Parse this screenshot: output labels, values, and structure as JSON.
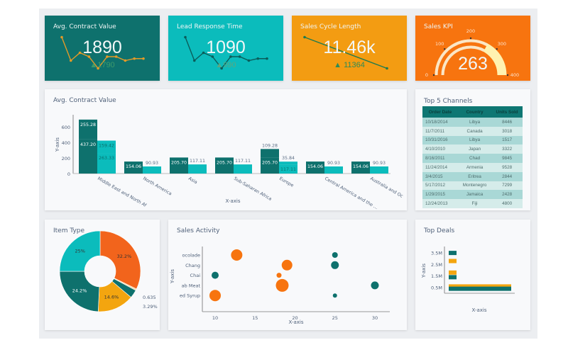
{
  "colors": {
    "dark_teal": "#0e716d",
    "cyan": "#0bbcbc",
    "amber": "#f39c12",
    "orange": "#f7740f",
    "green": "#2e8b57"
  },
  "kpis": [
    {
      "title": "Avg. Contract Value",
      "value": "1890",
      "sub": "1790",
      "bg": "#0e716d",
      "line": "#e39a27",
      "spark": [
        9,
        3,
        5,
        4,
        1,
        4,
        4,
        3,
        3.5,
        3.5
      ]
    },
    {
      "title": "Lead Response Time",
      "value": "1090",
      "sub": "990",
      "bg": "#0bbcbc",
      "line": "#0a5d5a",
      "spark": [
        9,
        3,
        5,
        4,
        1,
        4,
        4,
        3,
        3.5,
        3.5
      ]
    },
    {
      "title": "Sales Cycle Length",
      "value": "11.46k",
      "sub": "11364",
      "bg": "#f39c12",
      "line": "#1e7a4f",
      "spark": [
        9,
        1
      ]
    },
    {
      "title": "Sales KPI",
      "value": "263",
      "bg": "#f7740f",
      "gauge": {
        "min": 0,
        "max": 400,
        "value": 263,
        "ticks": [
          "0",
          "100",
          "200",
          "300",
          "400"
        ]
      }
    }
  ],
  "bar_chart": {
    "title": "Avg. Contract Value",
    "xlabel": "X-axis",
    "ylabel": "Y-axis",
    "yticks": [
      "0",
      "200",
      "400",
      "600"
    ],
    "ymax": 700,
    "categories": [
      "Middle East and North Af",
      "North America",
      "Asia",
      "Sub-Saharan Africa",
      "Europe",
      "Central America and the ...",
      "Australia and Oc"
    ],
    "dark": [
      [
        437.2,
        255.28
      ],
      [
        154.06
      ],
      [
        205.7
      ],
      [
        205.7
      ],
      [
        205.7,
        109.28
      ],
      [
        154.06
      ],
      [
        154.06
      ]
    ],
    "cyan": [
      [
        263.33,
        159.42
      ],
      [
        90.93
      ],
      [
        117.11
      ],
      [
        117.11
      ],
      [
        117.11,
        35.84
      ],
      [
        90.93
      ],
      [
        90.93
      ]
    ],
    "dark_labels": [
      [
        "437.20",
        "255.28"
      ],
      [
        "154.06"
      ],
      [
        "205.70"
      ],
      [
        "205.70"
      ],
      [
        "205.70",
        "109.28"
      ],
      [
        "154.06"
      ],
      [
        "154.06"
      ]
    ],
    "cyan_labels": [
      [
        "263.33",
        "159.42"
      ],
      [
        "90.93"
      ],
      [
        "117.11"
      ],
      [
        "117.11"
      ],
      [
        "117.11",
        "35.84"
      ],
      [
        "90.93"
      ],
      [
        "90.93"
      ]
    ]
  },
  "table": {
    "title": "Top 5 Channels",
    "headers": [
      "Order Date",
      "Country",
      "Units Sold"
    ],
    "rows": [
      [
        "10/18/2014",
        "Libya",
        "8446"
      ],
      [
        "11/7/2011",
        "Canada",
        "3018"
      ],
      [
        "10/31/2016",
        "Libya",
        "1517"
      ],
      [
        "4/10/2010",
        "Japan",
        "3322"
      ],
      [
        "8/16/2011",
        "Chad",
        "9845"
      ],
      [
        "11/24/2014",
        "Armenia",
        "9528"
      ],
      [
        "3/4/2015",
        "Eritrea",
        "2844"
      ],
      [
        "5/17/2012",
        "Montenegro",
        "7299"
      ],
      [
        "1/29/2015",
        "Jamaica",
        "2428"
      ],
      [
        "12/24/2013",
        "Fiji",
        "4800"
      ]
    ]
  },
  "donut": {
    "title": "Item Type",
    "slices": [
      {
        "value": 32.2,
        "label": "32.2%",
        "color": "#f2641c"
      },
      {
        "value": 0.635,
        "label": "0.635",
        "color": "#f3d9a8"
      },
      {
        "value": 3.29,
        "label": "3.29%",
        "color": "#0e716d"
      },
      {
        "value": 14.6,
        "label": "14.6%",
        "color": "#f3a50f"
      },
      {
        "value": 24.2,
        "label": "24.2%",
        "color": "#0e716d"
      },
      {
        "value": 25,
        "label": "25%",
        "color": "#0bbcbc"
      }
    ]
  },
  "scatter": {
    "title": "Sales Activity",
    "xlabel": "X-axis",
    "ylabel": "Y-axis",
    "xticks": [
      10,
      15,
      20,
      25,
      30
    ],
    "categories": [
      "ocolade",
      "Chang",
      "Chai",
      "ab Meat",
      "ed Syrup"
    ],
    "points": [
      {
        "x": 12.7,
        "y": 0,
        "size": 8,
        "color": "#f7740f"
      },
      {
        "x": 19,
        "y": 1,
        "size": 7.5,
        "color": "#f7740f"
      },
      {
        "x": 18,
        "y": 2,
        "size": 3.5,
        "color": "#f7740f"
      },
      {
        "x": 18.4,
        "y": 3,
        "size": 9,
        "color": "#f7740f"
      },
      {
        "x": 10,
        "y": 4,
        "size": 8,
        "color": "#f7740f"
      },
      {
        "x": 25,
        "y": 0,
        "size": 4,
        "color": "#0e716d"
      },
      {
        "x": 25,
        "y": 1,
        "size": 5.5,
        "color": "#0e716d"
      },
      {
        "x": 10,
        "y": 2,
        "size": 5,
        "color": "#0e716d"
      },
      {
        "x": 30,
        "y": 3,
        "size": 5.5,
        "color": "#0e716d"
      },
      {
        "x": 25,
        "y": 4,
        "size": 3,
        "color": "#0e716d"
      }
    ]
  },
  "top_deals": {
    "title": "Top Deals",
    "xlabel": "X-axis",
    "ylabel": "Y-axis",
    "yticks": [
      "3.5M",
      "2.5M",
      "1.5M",
      "0.5M"
    ],
    "bars": [
      {
        "y": 3.5,
        "value": 1,
        "color": "#0e716d"
      },
      {
        "y": 2.8,
        "value": 1,
        "color": "#f3a50f"
      },
      {
        "y": 1.8,
        "value": 1,
        "color": "#f3a50f"
      },
      {
        "y": 1.4,
        "value": 1,
        "color": "#0e716d"
      },
      {
        "y": 0.6,
        "value": 8,
        "color": "#f3a50f"
      },
      {
        "y": 0.4,
        "value": 8,
        "color": "#0e716d"
      }
    ]
  }
}
